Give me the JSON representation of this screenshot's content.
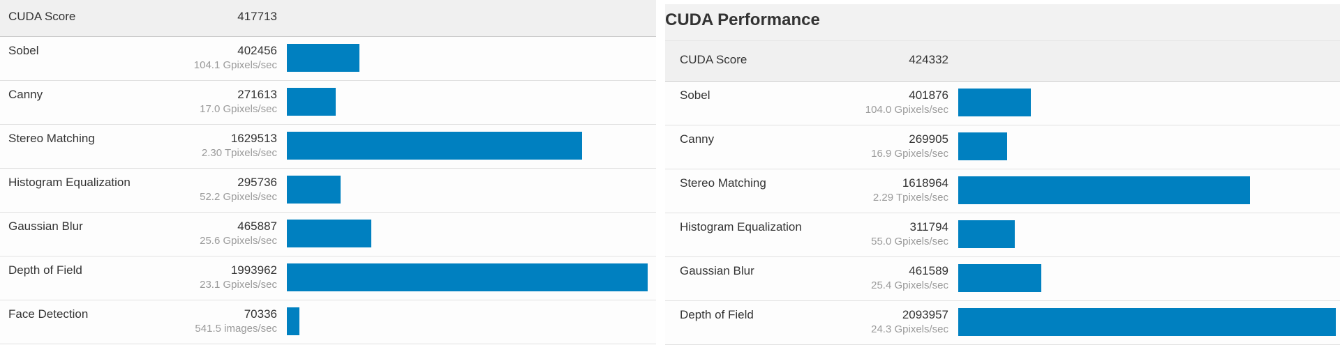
{
  "left": {
    "score_label": "CUDA Score",
    "score_value": "417713",
    "max_score": 1993962,
    "rows": [
      {
        "name": "Sobel",
        "score": "402456",
        "rate": "104.1 Gpixels/sec",
        "value": 402456
      },
      {
        "name": "Canny",
        "score": "271613",
        "rate": "17.0 Gpixels/sec",
        "value": 271613
      },
      {
        "name": "Stereo Matching",
        "score": "1629513",
        "rate": "2.30 Tpixels/sec",
        "value": 1629513
      },
      {
        "name": "Histogram Equalization",
        "score": "295736",
        "rate": "52.2 Gpixels/sec",
        "value": 295736
      },
      {
        "name": "Gaussian Blur",
        "score": "465887",
        "rate": "25.6 Gpixels/sec",
        "value": 465887
      },
      {
        "name": "Depth of Field",
        "score": "1993962",
        "rate": "23.1 Gpixels/sec",
        "value": 1993962
      },
      {
        "name": "Face Detection",
        "score": "70336",
        "rate": "541.5 images/sec",
        "value": 70336
      }
    ]
  },
  "right": {
    "title": "CUDA Performance",
    "score_label": "CUDA Score",
    "score_value": "424332",
    "max_score": 2093957,
    "rows": [
      {
        "name": "Sobel",
        "score": "401876",
        "rate": "104.0 Gpixels/sec",
        "value": 401876
      },
      {
        "name": "Canny",
        "score": "269905",
        "rate": "16.9 Gpixels/sec",
        "value": 269905
      },
      {
        "name": "Stereo Matching",
        "score": "1618964",
        "rate": "2.29 Tpixels/sec",
        "value": 1618964
      },
      {
        "name": "Histogram Equalization",
        "score": "311794",
        "rate": "55.0 Gpixels/sec",
        "value": 311794
      },
      {
        "name": "Gaussian Blur",
        "score": "461589",
        "rate": "25.4 Gpixels/sec",
        "value": 461589
      },
      {
        "name": "Depth of Field",
        "score": "2093957",
        "rate": "24.3 Gpixels/sec",
        "value": 2093957
      }
    ]
  },
  "colors": {
    "bar": "#0080c0",
    "header_bg": "#f0f0f0",
    "muted_text": "#9a9a9a"
  }
}
